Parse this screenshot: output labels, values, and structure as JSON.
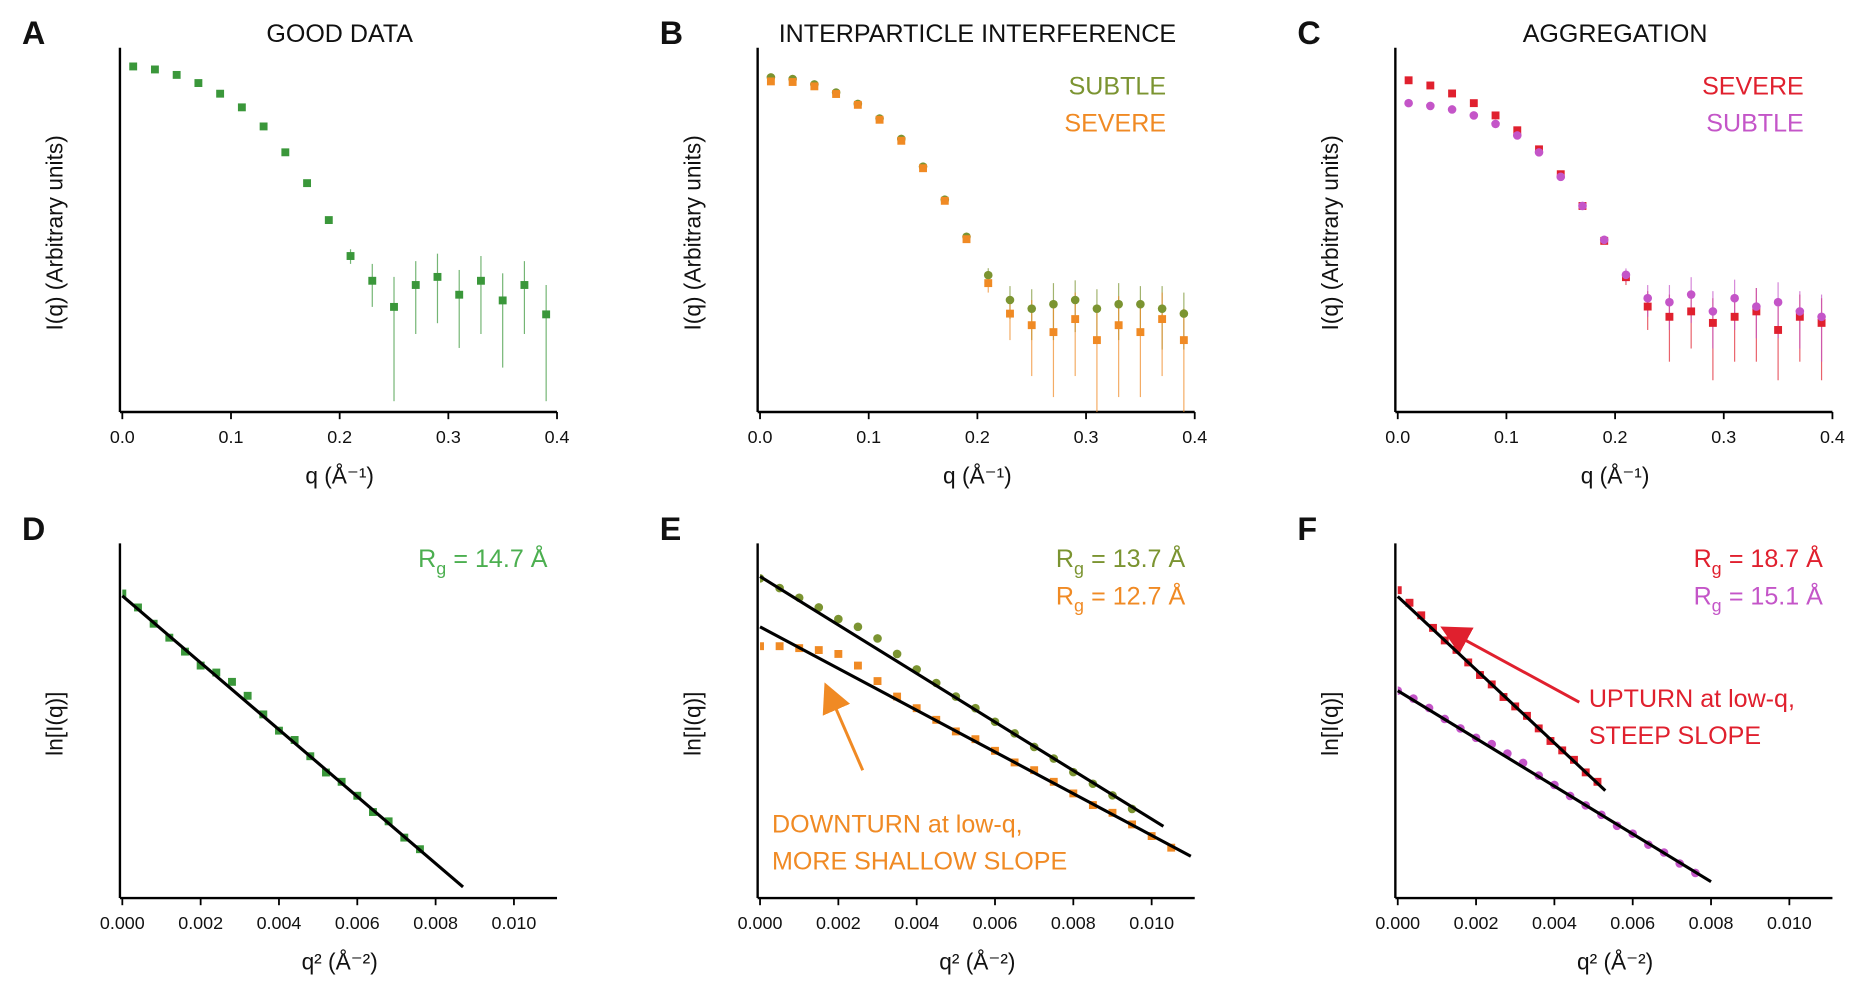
{
  "chart_data": [
    {
      "type": "scatter",
      "panel_label": "A",
      "title": "GOOD DATA",
      "xlabel": "q (Å⁻¹)",
      "ylabel": "I(q) (Arbitrary units)",
      "log_y": true,
      "xlim": [
        0,
        0.4
      ],
      "ylim": [
        0.0008,
        1.3
      ],
      "xticks": [
        {
          "value": 0,
          "label": "0.0"
        },
        0.1,
        0.2,
        0.3,
        0.4
      ],
      "series": [
        {
          "color": "#3a973a",
          "marker": "square",
          "x": [
            0.01,
            0.03,
            0.05,
            0.07,
            0.09,
            0.11,
            0.13,
            0.15,
            0.17,
            0.19,
            0.21,
            0.23,
            0.25,
            0.27,
            0.29,
            0.31,
            0.33,
            0.35,
            0.37,
            0.39
          ],
          "values": [
            1.0,
            0.94,
            0.84,
            0.71,
            0.57,
            0.43,
            0.29,
            0.17,
            0.09,
            0.042,
            0.02,
            0.012,
            0.007,
            0.011,
            0.013,
            0.009,
            0.012,
            0.008,
            0.011,
            0.006
          ],
          "errors": [
            0.01,
            0.01,
            0.01,
            0.008,
            0.007,
            0.005,
            0.004,
            0.003,
            0.002,
            0.002,
            0.003,
            0.005,
            0.006,
            0.007,
            0.008,
            0.006,
            0.008,
            0.006,
            0.007,
            0.005
          ]
        }
      ]
    },
    {
      "type": "scatter",
      "panel_label": "B",
      "title": "INTERPARTICLE INTERFERENCE",
      "xlabel": "q (Å⁻¹)",
      "ylabel": "I(q) (Arbitrary units)",
      "log_y": true,
      "xlim": [
        0,
        0.4
      ],
      "ylim": [
        0.0015,
        1.5
      ],
      "xticks": [
        {
          "value": 0,
          "label": "0.0"
        },
        0.1,
        0.2,
        0.3,
        0.4
      ],
      "series": [
        {
          "name": "SUBTLE",
          "color": "#7b9431",
          "marker": "circle",
          "x": [
            0.01,
            0.03,
            0.05,
            0.07,
            0.09,
            0.11,
            0.13,
            0.15,
            0.17,
            0.19,
            0.21,
            0.23,
            0.25,
            0.27,
            0.29,
            0.31,
            0.33,
            0.35,
            0.37,
            0.39
          ],
          "values": [
            0.95,
            0.92,
            0.83,
            0.71,
            0.57,
            0.43,
            0.29,
            0.17,
            0.09,
            0.044,
            0.021,
            0.013,
            0.011,
            0.012,
            0.013,
            0.011,
            0.012,
            0.012,
            0.011,
            0.01
          ],
          "errors": [
            0.01,
            0.01,
            0.01,
            0.008,
            0.007,
            0.005,
            0.004,
            0.003,
            0.002,
            0.002,
            0.003,
            0.004,
            0.005,
            0.006,
            0.006,
            0.005,
            0.006,
            0.005,
            0.006,
            0.005
          ]
        },
        {
          "name": "SEVERE",
          "color": "#f08a24",
          "marker": "square",
          "x": [
            0.01,
            0.03,
            0.05,
            0.07,
            0.09,
            0.11,
            0.13,
            0.15,
            0.17,
            0.19,
            0.21,
            0.23,
            0.25,
            0.27,
            0.29,
            0.31,
            0.33,
            0.35,
            0.37,
            0.39
          ],
          "values": [
            0.88,
            0.87,
            0.8,
            0.69,
            0.56,
            0.42,
            0.28,
            0.165,
            0.088,
            0.042,
            0.018,
            0.01,
            0.008,
            0.007,
            0.009,
            0.006,
            0.008,
            0.007,
            0.009,
            0.006
          ],
          "errors": [
            0.01,
            0.01,
            0.01,
            0.008,
            0.007,
            0.005,
            0.004,
            0.003,
            0.002,
            0.002,
            0.003,
            0.004,
            0.005,
            0.005,
            0.006,
            0.005,
            0.006,
            0.005,
            0.006,
            0.005
          ]
        }
      ]
    },
    {
      "type": "scatter",
      "panel_label": "C",
      "title": "AGGREGATION",
      "xlabel": "q (Å⁻¹)",
      "ylabel": "I(q) (Arbitrary units)",
      "log_y": true,
      "xlim": [
        0,
        0.4
      ],
      "ylim": [
        0.001,
        2.5
      ],
      "xticks": [
        {
          "value": 0,
          "label": "0.0"
        },
        0.1,
        0.2,
        0.3,
        0.4
      ],
      "series": [
        {
          "name": "SEVERE",
          "color": "#e0202e",
          "marker": "square",
          "x": [
            0.01,
            0.03,
            0.05,
            0.07,
            0.09,
            0.11,
            0.13,
            0.15,
            0.17,
            0.19,
            0.21,
            0.23,
            0.25,
            0.27,
            0.29,
            0.31,
            0.33,
            0.35,
            0.37,
            0.39
          ],
          "values": [
            1.4,
            1.25,
            1.05,
            0.85,
            0.65,
            0.47,
            0.31,
            0.18,
            0.09,
            0.042,
            0.019,
            0.01,
            0.008,
            0.009,
            0.007,
            0.008,
            0.009,
            0.006,
            0.008,
            0.007
          ],
          "errors": [
            0.01,
            0.01,
            0.01,
            0.008,
            0.007,
            0.005,
            0.004,
            0.003,
            0.002,
            0.002,
            0.003,
            0.004,
            0.005,
            0.005,
            0.005,
            0.005,
            0.006,
            0.004,
            0.005,
            0.005
          ]
        },
        {
          "name": "SUBTLE",
          "color": "#c455c8",
          "marker": "circle",
          "x": [
            0.01,
            0.03,
            0.05,
            0.07,
            0.09,
            0.11,
            0.13,
            0.15,
            0.17,
            0.19,
            0.21,
            0.23,
            0.25,
            0.27,
            0.29,
            0.31,
            0.33,
            0.35,
            0.37,
            0.39
          ],
          "values": [
            0.85,
            0.8,
            0.74,
            0.65,
            0.54,
            0.42,
            0.29,
            0.17,
            0.09,
            0.043,
            0.02,
            0.012,
            0.011,
            0.013,
            0.009,
            0.012,
            0.01,
            0.011,
            0.009,
            0.008
          ],
          "errors": [
            0.01,
            0.01,
            0.01,
            0.008,
            0.007,
            0.005,
            0.004,
            0.003,
            0.002,
            0.002,
            0.003,
            0.004,
            0.005,
            0.006,
            0.005,
            0.006,
            0.005,
            0.006,
            0.005,
            0.005
          ]
        }
      ]
    },
    {
      "type": "scatter",
      "panel_label": "D",
      "xlabel": "q² (Å⁻²)",
      "ylabel": "ln[I(q)]",
      "xlim": [
        0,
        0.0111
      ],
      "ylim": [
        -0.65,
        0.1
      ],
      "xticks": [
        {
          "value": 0,
          "label": "0.000"
        },
        0.002,
        0.004,
        0.006,
        0.008,
        {
          "value": 0.01,
          "label": "0.010"
        }
      ],
      "series": [
        {
          "color": "#3a973a",
          "label_color": "#4caf50",
          "marker": "square",
          "rg_label": [
            "R",
            "g",
            "= 14.7 Å"
          ],
          "x": [
            0,
            0.0004,
            0.0008,
            0.0012,
            0.0016,
            0.002,
            0.0024,
            0.0028,
            0.0032,
            0.0036,
            0.004,
            0.0044,
            0.0048,
            0.0052,
            0.0056,
            0.006,
            0.0064,
            0.0068,
            0.0072,
            0.0076
          ],
          "values": [
            0.005,
            -0.025,
            -0.06,
            -0.09,
            -0.12,
            -0.15,
            -0.165,
            -0.185,
            -0.215,
            -0.255,
            -0.29,
            -0.31,
            -0.345,
            -0.38,
            -0.4,
            -0.43,
            -0.465,
            -0.485,
            -0.52,
            -0.545
          ],
          "fit_x": [
            0,
            0.0087
          ],
          "fit_values": [
            0,
            -0.626
          ]
        }
      ]
    },
    {
      "type": "scatter",
      "panel_label": "E",
      "xlabel": "q² (Å⁻²)",
      "ylabel": "ln[I(q)]",
      "xlim": [
        0,
        0.0111
      ],
      "ylim": [
        -0.83,
        0.07
      ],
      "xticks": [
        {
          "value": 0,
          "label": "0.000"
        },
        0.002,
        0.004,
        0.006,
        0.008,
        {
          "value": 0.01,
          "label": "0.010"
        }
      ],
      "series": [
        {
          "color": "#7b9431",
          "marker": "circle",
          "rg_label": [
            "R",
            "g",
            "= 13.7 Å"
          ],
          "x": [
            0,
            0.0005,
            0.001,
            0.0015,
            0.002,
            0.0025,
            0.003,
            0.0035,
            0.004,
            0.0045,
            0.005,
            0.0055,
            0.006,
            0.0065,
            0.007,
            0.0075,
            0.008,
            0.0085,
            0.009,
            0.0095
          ],
          "values": [
            -0.005,
            -0.03,
            -0.055,
            -0.08,
            -0.11,
            -0.13,
            -0.16,
            -0.2,
            -0.24,
            -0.275,
            -0.31,
            -0.34,
            -0.375,
            -0.405,
            -0.44,
            -0.47,
            -0.505,
            -0.535,
            -0.565,
            -0.6
          ],
          "fit_x": [
            0,
            0.0103
          ],
          "fit_values": [
            0,
            -0.645
          ]
        },
        {
          "color": "#f08a24",
          "marker": "square",
          "rg_label": [
            "R",
            "g",
            "= 12.7 Å"
          ],
          "x": [
            0,
            0.0005,
            0.001,
            0.0015,
            0.002,
            0.0025,
            0.003,
            0.0035,
            0.004,
            0.0045,
            0.005,
            0.0055,
            0.006,
            0.0065,
            0.007,
            0.0075,
            0.008,
            0.0085,
            0.009,
            0.0095,
            0.01,
            0.0105
          ],
          "values": [
            -0.18,
            -0.18,
            -0.185,
            -0.19,
            -0.2,
            -0.23,
            -0.27,
            -0.31,
            -0.34,
            -0.37,
            -0.4,
            -0.42,
            -0.45,
            -0.48,
            -0.5,
            -0.53,
            -0.56,
            -0.59,
            -0.61,
            -0.64,
            -0.67,
            -0.7
          ],
          "fit_x": [
            0,
            0.011
          ],
          "fit_values": [
            -0.13,
            -0.722
          ]
        }
      ],
      "annotation": {
        "lines": [
          "DOWNTURN at low-q,",
          "MORE SHALLOW SLOPE"
        ],
        "color": "#f08a24"
      }
    },
    {
      "type": "scatter",
      "panel_label": "F",
      "xlabel": "q² (Å⁻²)",
      "ylabel": "ln[I(q)]",
      "xlim": [
        0,
        0.0111
      ],
      "ylim": [
        -0.96,
        0.15
      ],
      "xticks": [
        {
          "value": 0,
          "label": "0.000"
        },
        0.002,
        0.004,
        0.006,
        0.008,
        {
          "value": 0.01,
          "label": "0.010"
        }
      ],
      "series": [
        {
          "color": "#e0202e",
          "marker": "square",
          "rg_label": [
            "R",
            "g",
            "= 18.7 Å"
          ],
          "x": [
            0,
            0.0003,
            0.0006,
            0.0009,
            0.0012,
            0.0015,
            0.0018,
            0.0021,
            0.0024,
            0.0027,
            0.003,
            0.0033,
            0.0036,
            0.0039,
            0.0042,
            0.0045,
            0.0048,
            0.0051
          ],
          "values": [
            0.02,
            -0.02,
            -0.06,
            -0.1,
            -0.14,
            -0.17,
            -0.21,
            -0.25,
            -0.28,
            -0.32,
            -0.35,
            -0.38,
            -0.42,
            -0.46,
            -0.49,
            -0.52,
            -0.56,
            -0.59
          ],
          "fit_x": [
            0,
            0.0053
          ],
          "fit_values": [
            0,
            -0.618
          ]
        },
        {
          "color": "#c455c8",
          "marker": "circle",
          "rg_label": [
            "R",
            "g",
            "= 15.1 Å"
          ],
          "x": [
            0,
            0.0004,
            0.0008,
            0.0012,
            0.0016,
            0.002,
            0.0024,
            0.0028,
            0.0032,
            0.0036,
            0.004,
            0.0044,
            0.0048,
            0.0052,
            0.0056,
            0.006,
            0.0064,
            0.0068,
            0.0072,
            0.0076
          ],
          "values": [
            -0.3,
            -0.325,
            -0.355,
            -0.39,
            -0.42,
            -0.45,
            -0.47,
            -0.5,
            -0.53,
            -0.57,
            -0.6,
            -0.635,
            -0.665,
            -0.695,
            -0.73,
            -0.755,
            -0.79,
            -0.815,
            -0.85,
            -0.88
          ],
          "fit_x": [
            0,
            0.008
          ],
          "fit_values": [
            -0.3,
            -0.908
          ]
        }
      ],
      "annotation": {
        "lines": [
          "UPTURN at low-q,",
          "STEEP SLOPE"
        ],
        "color": "#e0202e"
      }
    }
  ]
}
